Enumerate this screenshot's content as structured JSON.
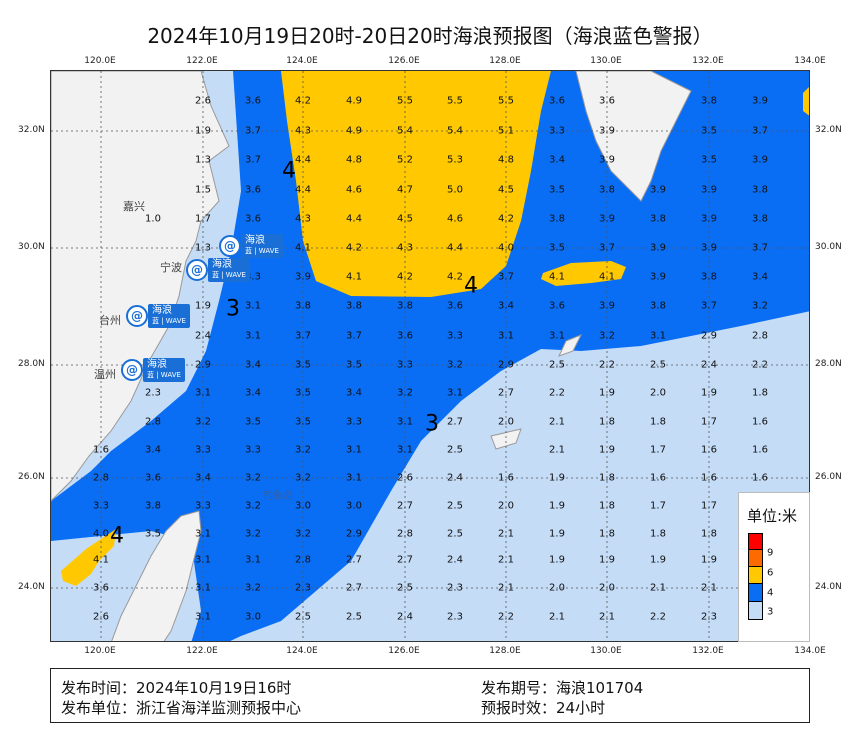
{
  "title": "2024年10月19日20时-20日20时海浪预报图（海浪蓝色警报）",
  "lon_labels": [
    "120.0E",
    "122.0E",
    "124.0E",
    "126.0E",
    "128.0E",
    "130.0E",
    "132.0E",
    "134.0E"
  ],
  "lat_labels": [
    "32.0N",
    "30.0N",
    "28.0N",
    "26.0N",
    "24.0N"
  ],
  "colors": {
    "sea_low": "#c5dcf7",
    "blue": "#0a6ef5",
    "yellow": "#ffc800",
    "orange": "#ff6a00",
    "red": "#ff0000",
    "land": "#f2f2f2"
  },
  "wave_heights": [
    [
      null,
      null,
      2.6,
      3.6,
      4.2,
      4.9,
      5.5,
      5.5,
      5.5,
      3.6,
      3.6,
      null,
      3.8,
      3.9
    ],
    [
      null,
      null,
      1.9,
      3.7,
      4.3,
      4.9,
      5.4,
      5.4,
      5.1,
      3.3,
      3.9,
      null,
      3.5,
      3.7
    ],
    [
      null,
      null,
      1.3,
      3.7,
      4.4,
      4.8,
      5.2,
      5.3,
      4.8,
      3.4,
      3.9,
      null,
      3.5,
      3.9
    ],
    [
      null,
      null,
      1.5,
      3.6,
      4.4,
      4.6,
      4.7,
      5.0,
      4.5,
      3.5,
      3.8,
      3.9,
      3.9,
      3.8
    ],
    [
      null,
      1.0,
      1.7,
      3.6,
      4.3,
      4.4,
      4.5,
      4.6,
      4.2,
      3.8,
      3.9,
      3.8,
      3.9,
      3.8
    ],
    [
      null,
      null,
      1.3,
      null,
      4.1,
      4.2,
      4.3,
      4.4,
      4.0,
      3.5,
      3.7,
      3.9,
      3.9,
      3.7
    ],
    [
      null,
      null,
      null,
      3.3,
      3.9,
      4.1,
      4.2,
      4.2,
      3.7,
      4.1,
      4.1,
      3.9,
      3.8,
      3.4
    ],
    [
      null,
      null,
      1.9,
      3.1,
      3.8,
      3.8,
      3.8,
      3.6,
      3.4,
      3.6,
      3.9,
      3.8,
      3.7,
      3.2
    ],
    [
      null,
      null,
      2.4,
      3.1,
      3.7,
      3.7,
      3.6,
      3.3,
      3.1,
      3.1,
      3.2,
      3.1,
      2.9,
      2.8
    ],
    [
      null,
      null,
      2.9,
      3.4,
      3.5,
      3.5,
      3.3,
      3.2,
      2.9,
      2.5,
      2.2,
      2.5,
      2.4,
      2.2
    ],
    [
      null,
      2.3,
      3.1,
      3.4,
      3.5,
      3.4,
      3.2,
      3.1,
      2.7,
      2.2,
      1.9,
      2.0,
      1.9,
      1.8
    ],
    [
      null,
      2.8,
      3.2,
      3.5,
      3.5,
      3.3,
      3.1,
      2.7,
      2.0,
      2.1,
      1.8,
      1.8,
      1.7,
      1.6
    ],
    [
      1.6,
      3.4,
      3.3,
      3.3,
      3.2,
      3.1,
      3.1,
      2.5,
      null,
      2.1,
      1.9,
      1.7,
      1.6,
      1.6
    ],
    [
      2.8,
      3.6,
      3.4,
      3.2,
      3.2,
      3.1,
      2.6,
      2.4,
      1.6,
      1.9,
      1.8,
      1.6,
      1.6,
      1.6
    ],
    [
      3.3,
      3.8,
      3.3,
      3.2,
      3.0,
      3.0,
      2.7,
      2.5,
      2.0,
      1.9,
      1.8,
      1.7,
      1.7,
      null
    ],
    [
      4.0,
      3.5,
      3.1,
      3.2,
      3.2,
      2.9,
      2.8,
      2.5,
      2.1,
      1.9,
      1.8,
      1.8,
      1.8,
      null
    ],
    [
      4.1,
      null,
      3.1,
      3.1,
      2.8,
      2.7,
      2.7,
      2.4,
      2.1,
      1.9,
      1.9,
      1.9,
      1.9,
      null
    ],
    [
      3.6,
      null,
      3.1,
      3.2,
      2.3,
      2.7,
      2.5,
      2.3,
      2.1,
      2.0,
      2.0,
      2.1,
      2.1,
      null
    ],
    [
      2.6,
      null,
      3.1,
      3.0,
      2.5,
      2.5,
      2.4,
      2.3,
      2.2,
      2.1,
      2.1,
      2.2,
      2.3,
      null
    ]
  ],
  "contour_labels": [
    "4",
    "4",
    "4",
    "3",
    "3"
  ],
  "cities": [
    "嘉兴",
    "宁波",
    "台州",
    "温州"
  ],
  "island_label": "钓鱼岛",
  "warning_badge": {
    "text": "海浪",
    "level": "蓝",
    "sub": "WAVE"
  },
  "legend": {
    "title": "单位:米",
    "levels": [
      "9",
      "6",
      "4",
      "3"
    ]
  },
  "footer": {
    "issue_time": "发布时间：2024年10月19日16时",
    "issuer": "发布单位：浙江省海洋监测预报中心",
    "issue_no": "发布期号：海浪101704",
    "validity": "预报时效：24小时"
  }
}
